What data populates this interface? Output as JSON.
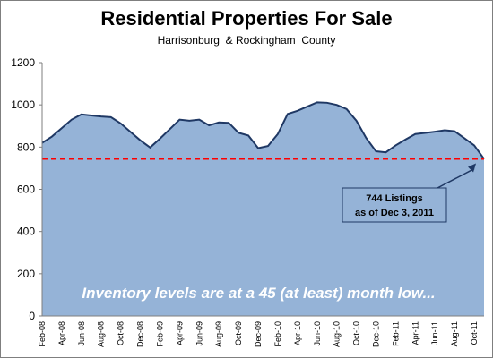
{
  "chart_data": {
    "type": "area",
    "title": "Residential Properties For Sale",
    "subtitle": "Harrisonburg  & Rockingham  County",
    "xlabel": "",
    "ylabel": "",
    "ylim": [
      0,
      1200
    ],
    "yticks": [
      0,
      200,
      400,
      600,
      800,
      1000,
      1200
    ],
    "x": [
      "Feb-08",
      "Mar-08",
      "Apr-08",
      "May-08",
      "Jun-08",
      "Jul-08",
      "Aug-08",
      "Sep-08",
      "Oct-08",
      "Nov-08",
      "Dec-08",
      "Jan-09",
      "Feb-09",
      "Mar-09",
      "Apr-09",
      "May-09",
      "Jun-09",
      "Jul-09",
      "Aug-09",
      "Sep-09",
      "Oct-09",
      "Nov-09",
      "Dec-09",
      "Jan-10",
      "Feb-10",
      "Mar-10",
      "Apr-10",
      "May-10",
      "Jun-10",
      "Jul-10",
      "Aug-10",
      "Sep-10",
      "Oct-10",
      "Nov-10",
      "Dec-10",
      "Jan-11",
      "Feb-11",
      "Mar-11",
      "Apr-11",
      "May-11",
      "Jun-11",
      "Jul-11",
      "Aug-11",
      "Sep-11",
      "Oct-11",
      "Nov-11"
    ],
    "x_tick_labels": [
      "Feb-08",
      "Apr-08",
      "Jun-08",
      "Aug-08",
      "Oct-08",
      "Dec-08",
      "Feb-09",
      "Apr-09",
      "Jun-09",
      "Aug-09",
      "Oct-09",
      "Dec-09",
      "Feb-10",
      "Apr-10",
      "Jun-10",
      "Aug-10",
      "Oct-10",
      "Dec-10",
      "Feb-11",
      "Apr-11",
      "Jun-11",
      "Aug-11",
      "Oct-11"
    ],
    "values": [
      820,
      850,
      890,
      930,
      955,
      950,
      945,
      942,
      912,
      872,
      832,
      798,
      840,
      885,
      930,
      925,
      930,
      903,
      917,
      915,
      868,
      855,
      795,
      805,
      862,
      957,
      972,
      992,
      1012,
      1010,
      1000,
      980,
      925,
      843,
      780,
      775,
      808,
      836,
      862,
      867,
      873,
      880,
      875,
      842,
      808,
      744
    ],
    "reference_line": {
      "value": 744,
      "style": "dashed",
      "color": "#ff0000"
    },
    "annotation": {
      "line1": "744 Listings",
      "line2": "as of Dec 3, 2011"
    },
    "footer": "Inventory levels are at a 45 (at least) month low...",
    "grid": false,
    "legend": "none",
    "colors": {
      "area_fill": "#95b3d7",
      "area_line": "#1f3864",
      "plot_bg": "#95b3d7",
      "reference": "#ff0000"
    }
  }
}
